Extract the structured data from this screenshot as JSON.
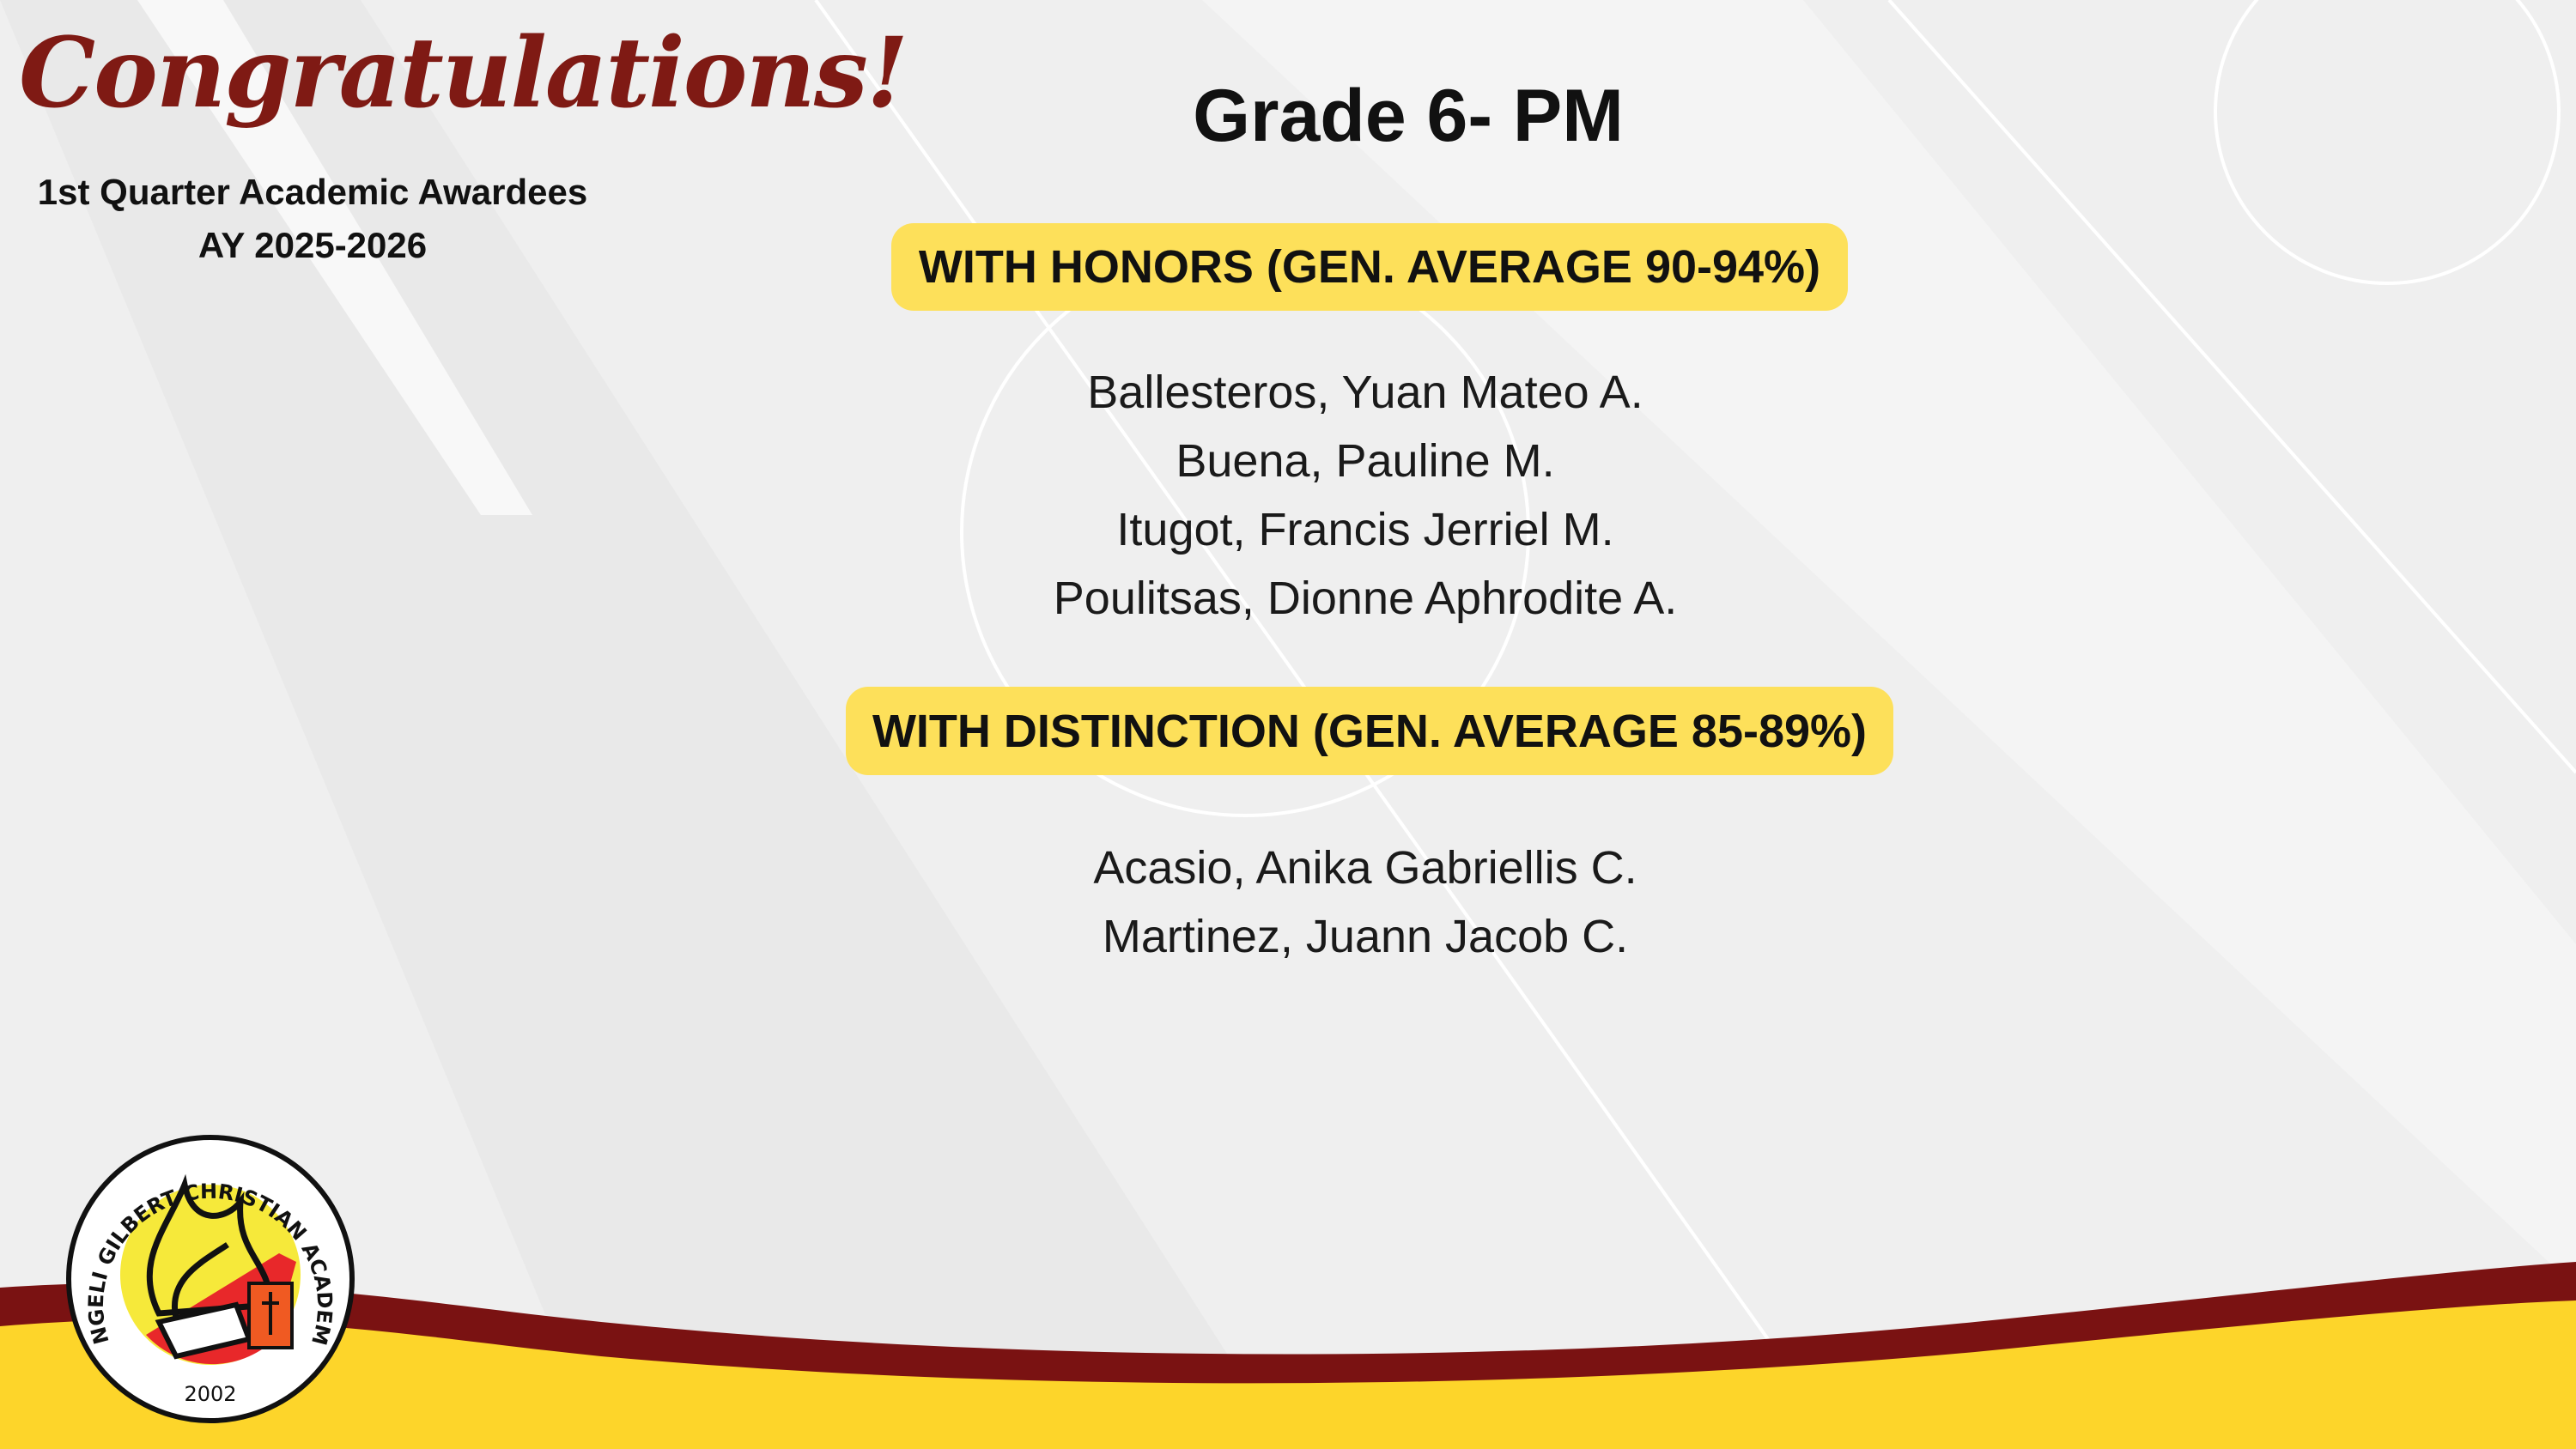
{
  "header": {
    "greeting": "Congratulations!",
    "subtitle": "1st Quarter Academic Awardees",
    "academic_year": "AY 2025-2026"
  },
  "main": {
    "title": "Grade 6- PM",
    "sections": [
      {
        "heading": "WITH HONORS (GEN. AVERAGE 90-94%)",
        "names": [
          "Ballesteros, Yuan Mateo A.",
          "Buena, Pauline M.",
          "Itugot, Francis Jerriel M.",
          "Poulitsas, Dionne Aphrodite A."
        ]
      },
      {
        "heading": "WITH DISTINCTION (GEN. AVERAGE 85-89%)",
        "names": [
          "Acasio, Anika Gabriellis C.",
          "Martinez, Juann Jacob C."
        ]
      }
    ]
  },
  "logo": {
    "school_name": "ANGELI GILBERT CHRISTIAN ACADEMY",
    "year": "2002"
  },
  "colors": {
    "accent_maroon": "#7a1212",
    "accent_yellow": "#fdd52a",
    "pill": "#fde05a",
    "greeting": "#7f1a14"
  }
}
